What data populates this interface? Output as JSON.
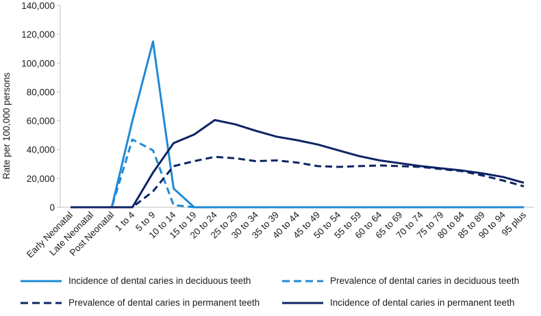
{
  "chart_data": {
    "type": "line",
    "title": "",
    "xlabel": "",
    "ylabel": "Rate per 100,000 persons",
    "ylim": [
      0,
      140000
    ],
    "yticks": [
      0,
      20000,
      40000,
      60000,
      80000,
      100000,
      120000,
      140000
    ],
    "ytick_labels": [
      "0",
      "20,000",
      "40,000",
      "60,000",
      "80,000",
      "100,000",
      "120,000",
      "140,000"
    ],
    "categories": [
      "Early Neonatal",
      "Late Neonatal",
      "Post Neonatal",
      "1 to 4",
      "5 to 9",
      "10 to 14",
      "15 to 19",
      "20 to 24",
      "25 to 29",
      "30 to 34",
      "35 to 39",
      "40 to 44",
      "45 to 49",
      "50 to 54",
      "55 to 59",
      "60 to 64",
      "65 to 69",
      "70 to 74",
      "75 to 79",
      "80 to 84",
      "85 to 89",
      "90 to 94",
      "95 plus"
    ],
    "grid": false,
    "legend_position": "bottom",
    "series": [
      {
        "name": "Incidence of dental caries in deciduous teeth",
        "color": "#1f8ad6",
        "dash": "solid",
        "values": [
          0,
          0,
          0,
          60000,
          115000,
          13000,
          0,
          0,
          0,
          0,
          0,
          0,
          0,
          0,
          0,
          0,
          0,
          0,
          0,
          0,
          0,
          0,
          0
        ]
      },
      {
        "name": "Prevalence of dental caries in deciduous teeth",
        "color": "#1f8ad6",
        "dash": "dashed",
        "values": [
          0,
          0,
          0,
          47000,
          39500,
          1500,
          0,
          0,
          0,
          0,
          0,
          0,
          0,
          0,
          0,
          0,
          0,
          0,
          0,
          0,
          0,
          0,
          0
        ]
      },
      {
        "name": "Prevalence of dental caries in permanent teeth",
        "color": "#0d2463",
        "dash": "dashed",
        "values": [
          0,
          0,
          0,
          0,
          11000,
          28500,
          32000,
          35000,
          34000,
          32000,
          32500,
          31000,
          28500,
          28000,
          28500,
          29000,
          28500,
          28000,
          26500,
          25000,
          22000,
          18500,
          14500
        ]
      },
      {
        "name": "Incidence of dental caries in permanent teeth",
        "color": "#0d2463",
        "dash": "solid",
        "values": [
          0,
          0,
          0,
          0,
          24000,
          44500,
          50500,
          60500,
          57500,
          53000,
          49000,
          46500,
          43500,
          39500,
          35500,
          32500,
          30500,
          28500,
          27000,
          25500,
          23500,
          21000,
          17000
        ]
      }
    ]
  }
}
